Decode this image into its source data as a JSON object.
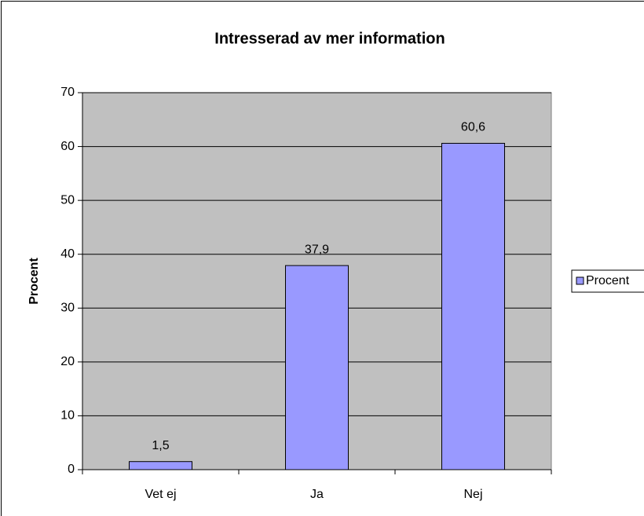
{
  "chart_data": {
    "type": "bar",
    "title": "Intresserad av mer information",
    "y_label": "Procent",
    "categories": [
      "Vet ej",
      "Ja",
      "Nej"
    ],
    "series": [
      {
        "name": "Procent",
        "color": "#9999ff",
        "values": [
          1.5,
          37.9,
          60.6
        ],
        "value_labels": [
          "1,5",
          "37,9",
          "60,6"
        ]
      }
    ],
    "ylim": [
      0,
      70
    ],
    "yticks": [
      0,
      10,
      20,
      30,
      40,
      50,
      60,
      70
    ],
    "grid": true,
    "legend": "right"
  }
}
